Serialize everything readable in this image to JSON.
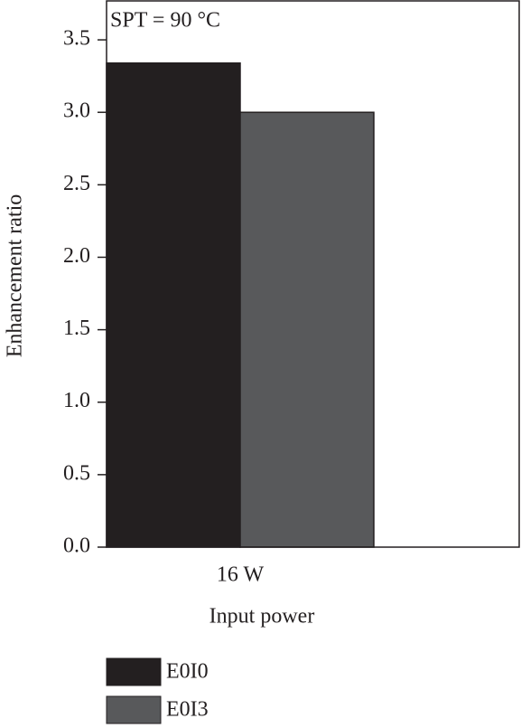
{
  "chart_data": {
    "type": "bar",
    "annotation": "SPT = 90 °C",
    "xlabel": "Input power",
    "ylabel": "Enhancement ratio",
    "categories": [
      "16 W"
    ],
    "series": [
      {
        "name": "E0I0",
        "color": "#231f20",
        "values": [
          3.34
        ]
      },
      {
        "name": "E0I3",
        "color": "#58595b",
        "values": [
          3.0
        ]
      }
    ],
    "ylim": [
      0,
      3.75
    ],
    "yticks": [
      {
        "value": 0,
        "label": "0.0"
      },
      0.5,
      {
        "value": 1,
        "label": "1.0"
      },
      1.5,
      {
        "value": 2,
        "label": "2.0"
      },
      2.5,
      {
        "value": 3,
        "label": "3.0"
      },
      3.5
    ]
  }
}
